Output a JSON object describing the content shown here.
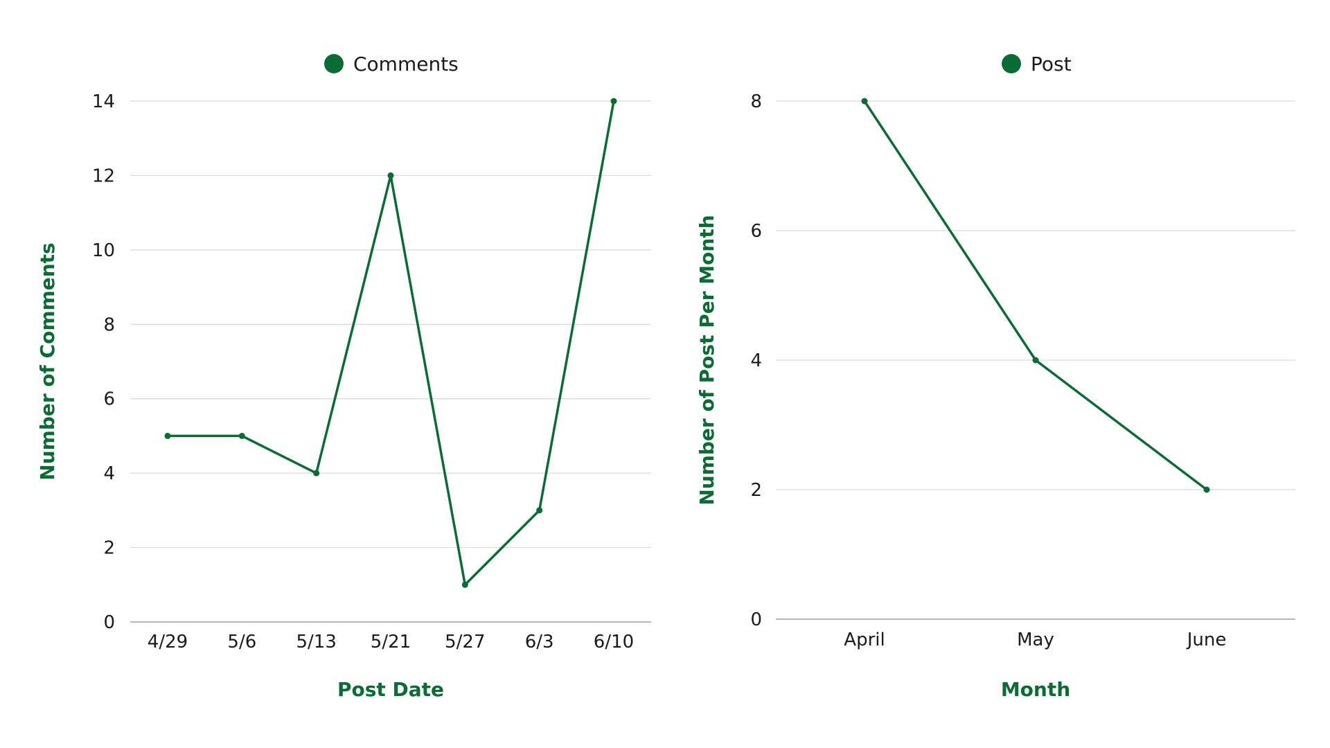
{
  "chart_data": [
    {
      "type": "line",
      "legend": "top-center",
      "grid": true,
      "colors": {
        "series": "#0b6b34",
        "grid": "#d9d9d9",
        "axis": "#9e9e9e",
        "axis_title": "#0b6b34"
      },
      "categories": [
        "4/29",
        "5/6",
        "5/13",
        "5/21",
        "5/27",
        "6/3",
        "6/10"
      ],
      "series": [
        {
          "name": "Comments",
          "values": [
            5,
            5,
            4,
            12,
            1,
            3,
            14
          ]
        }
      ],
      "xlabel": "Post Date",
      "ylabel": "Number of Comments",
      "ylim": [
        0,
        14
      ],
      "yticks": [
        0,
        2,
        4,
        6,
        8,
        10,
        12,
        14
      ]
    },
    {
      "type": "line",
      "legend": "top-center",
      "grid": true,
      "colors": {
        "series": "#0b6b34",
        "grid": "#d9d9d9",
        "axis": "#9e9e9e",
        "axis_title": "#0b6b34"
      },
      "categories": [
        "April",
        "May",
        "June"
      ],
      "series": [
        {
          "name": "Post",
          "values": [
            8,
            4,
            2
          ]
        }
      ],
      "xlabel": "Month",
      "ylabel": "Number of Post Per Month",
      "ylim": [
        0,
        8
      ],
      "yticks": [
        0,
        2,
        4,
        6,
        8
      ]
    }
  ]
}
